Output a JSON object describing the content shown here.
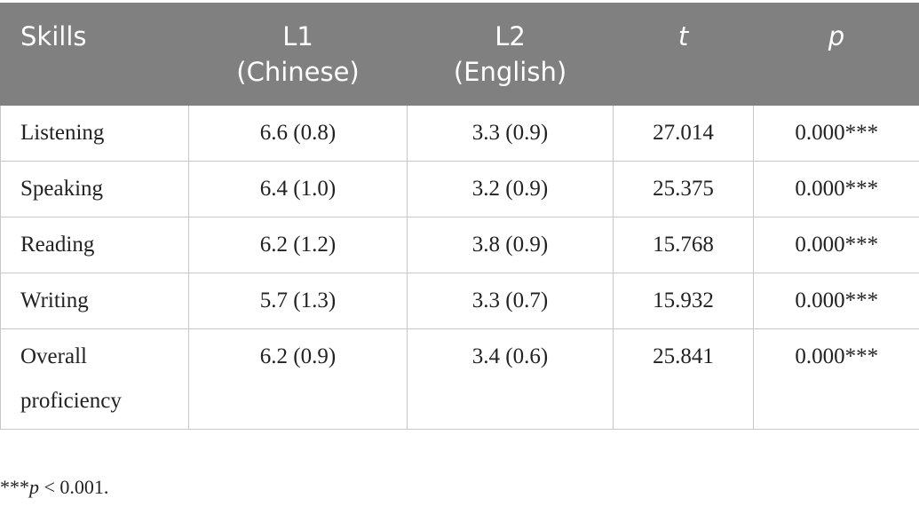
{
  "table": {
    "header": [
      [
        "Skills"
      ],
      [
        "L1",
        "(Chinese)"
      ],
      [
        "L2",
        "(English)"
      ],
      [
        "t"
      ],
      [
        "p"
      ]
    ],
    "rows": [
      [
        "Listening",
        "6.6 (0.8)",
        "3.3 (0.9)",
        "27.014",
        "0.000***"
      ],
      [
        "Speaking",
        "6.4 (1.0)",
        "3.2 (0.9)",
        "25.375",
        "0.000***"
      ],
      [
        "Reading",
        "6.2 (1.2)",
        "3.8 (0.9)",
        "15.768",
        "0.000***"
      ],
      [
        "Writing",
        "5.7 (1.3)",
        "3.3 (0.7)",
        "15.932",
        "0.000***"
      ],
      [
        "Overall proficiency",
        "6.2 (0.9)",
        "3.4 (0.6)",
        "25.841",
        "0.000***"
      ]
    ]
  },
  "footnote": {
    "stars": "***",
    "italic": "p",
    "rest": " < 0.001."
  }
}
